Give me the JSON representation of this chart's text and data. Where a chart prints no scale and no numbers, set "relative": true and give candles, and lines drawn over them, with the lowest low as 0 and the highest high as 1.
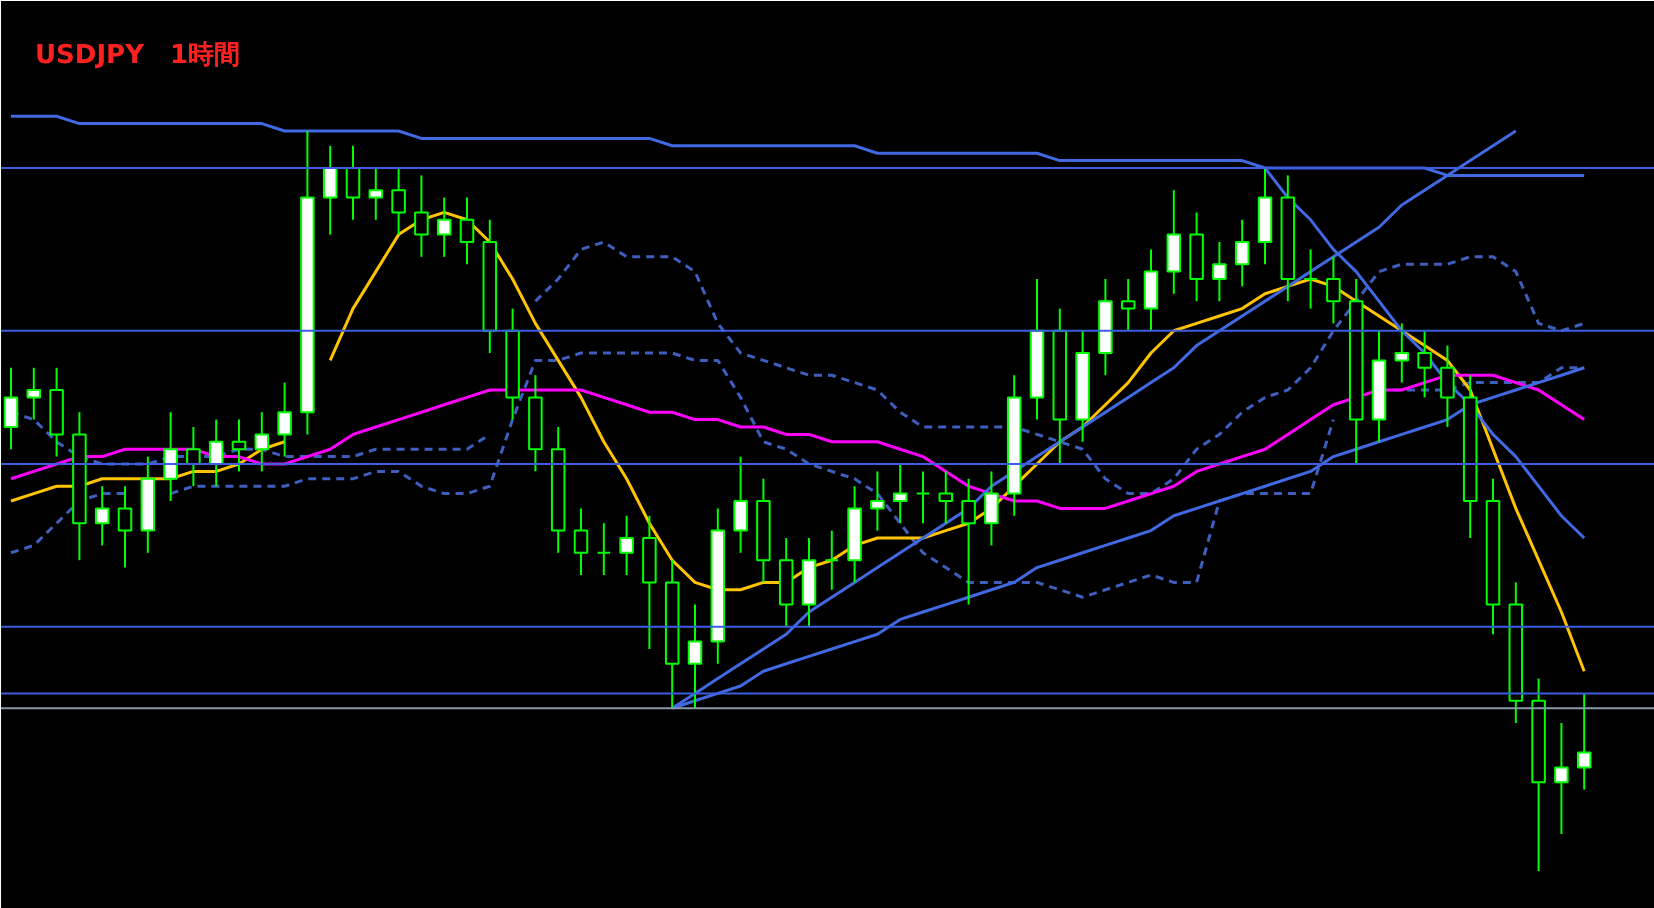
{
  "chart_data": {
    "type": "candlestick",
    "title": "USDJPY　1時間",
    "relative": true,
    "tick_labels": false,
    "categories": [
      null,
      null,
      null,
      null,
      null,
      null,
      null,
      null,
      null,
      null,
      null,
      null,
      null,
      null,
      null,
      null,
      null,
      null,
      null,
      null,
      null,
      null,
      null,
      null,
      null,
      null,
      null,
      null,
      null,
      null,
      null,
      null,
      null,
      null,
      null,
      null,
      null,
      null,
      null,
      null,
      null,
      null,
      null,
      null,
      null,
      null,
      null,
      null,
      null,
      null,
      null,
      null,
      null,
      null,
      null,
      null,
      null,
      null,
      null,
      null,
      null,
      null,
      null,
      null,
      null,
      null,
      null,
      null,
      null,
      null
    ],
    "ohlc": [
      [
        0.6,
        0.68,
        0.57,
        0.64
      ],
      [
        0.64,
        0.68,
        0.61,
        0.65
      ],
      [
        0.65,
        0.68,
        0.56,
        0.59
      ],
      [
        0.59,
        0.62,
        0.42,
        0.47
      ],
      [
        0.47,
        0.52,
        0.44,
        0.49
      ],
      [
        0.49,
        0.52,
        0.41,
        0.46
      ],
      [
        0.46,
        0.56,
        0.43,
        0.53
      ],
      [
        0.53,
        0.62,
        0.5,
        0.57
      ],
      [
        0.57,
        0.6,
        0.52,
        0.55
      ],
      [
        0.55,
        0.61,
        0.52,
        0.58
      ],
      [
        0.58,
        0.61,
        0.54,
        0.57
      ],
      [
        0.57,
        0.62,
        0.54,
        0.59
      ],
      [
        0.59,
        0.66,
        0.56,
        0.62
      ],
      [
        0.62,
        1.0,
        0.59,
        0.91
      ],
      [
        0.91,
        0.98,
        0.86,
        0.95
      ],
      [
        0.95,
        0.98,
        0.88,
        0.91
      ],
      [
        0.91,
        0.95,
        0.88,
        0.92
      ],
      [
        0.92,
        0.95,
        0.86,
        0.89
      ],
      [
        0.89,
        0.94,
        0.83,
        0.86
      ],
      [
        0.86,
        0.91,
        0.83,
        0.88
      ],
      [
        0.88,
        0.91,
        0.82,
        0.85
      ],
      [
        0.85,
        0.88,
        0.7,
        0.73
      ],
      [
        0.73,
        0.76,
        0.61,
        0.64
      ],
      [
        0.64,
        0.67,
        0.54,
        0.57
      ],
      [
        0.57,
        0.6,
        0.43,
        0.46
      ],
      [
        0.46,
        0.49,
        0.4,
        0.43
      ],
      [
        0.43,
        0.47,
        0.4,
        0.43
      ],
      [
        0.43,
        0.48,
        0.4,
        0.45
      ],
      [
        0.45,
        0.48,
        0.3,
        0.39
      ],
      [
        0.39,
        0.42,
        0.22,
        0.28
      ],
      [
        0.28,
        0.36,
        0.22,
        0.31
      ],
      [
        0.31,
        0.49,
        0.28,
        0.46
      ],
      [
        0.46,
        0.56,
        0.43,
        0.5
      ],
      [
        0.5,
        0.53,
        0.39,
        0.42
      ],
      [
        0.42,
        0.45,
        0.33,
        0.36
      ],
      [
        0.36,
        0.45,
        0.33,
        0.42
      ],
      [
        0.42,
        0.46,
        0.38,
        0.42
      ],
      [
        0.42,
        0.52,
        0.39,
        0.49
      ],
      [
        0.49,
        0.54,
        0.46,
        0.5
      ],
      [
        0.5,
        0.55,
        0.47,
        0.51
      ],
      [
        0.51,
        0.54,
        0.47,
        0.51
      ],
      [
        0.51,
        0.54,
        0.47,
        0.5
      ],
      [
        0.5,
        0.53,
        0.36,
        0.47
      ],
      [
        0.47,
        0.54,
        0.44,
        0.51
      ],
      [
        0.51,
        0.67,
        0.48,
        0.64
      ],
      [
        0.64,
        0.8,
        0.61,
        0.73
      ],
      [
        0.73,
        0.76,
        0.55,
        0.61
      ],
      [
        0.61,
        0.73,
        0.58,
        0.7
      ],
      [
        0.7,
        0.8,
        0.67,
        0.77
      ],
      [
        0.77,
        0.8,
        0.73,
        0.76
      ],
      [
        0.76,
        0.84,
        0.73,
        0.81
      ],
      [
        0.81,
        0.92,
        0.78,
        0.86
      ],
      [
        0.86,
        0.89,
        0.77,
        0.8
      ],
      [
        0.8,
        0.85,
        0.77,
        0.82
      ],
      [
        0.82,
        0.88,
        0.79,
        0.85
      ],
      [
        0.85,
        0.95,
        0.82,
        0.91
      ],
      [
        0.91,
        0.94,
        0.77,
        0.8
      ],
      [
        0.8,
        0.84,
        0.76,
        0.8
      ],
      [
        0.8,
        0.83,
        0.74,
        0.77
      ],
      [
        0.77,
        0.8,
        0.55,
        0.61
      ],
      [
        0.61,
        0.73,
        0.58,
        0.69
      ],
      [
        0.69,
        0.74,
        0.66,
        0.7
      ],
      [
        0.7,
        0.73,
        0.64,
        0.68
      ],
      [
        0.68,
        0.71,
        0.6,
        0.64
      ],
      [
        0.64,
        0.67,
        0.45,
        0.5
      ],
      [
        0.5,
        0.53,
        0.32,
        0.36
      ],
      [
        0.36,
        0.39,
        0.2,
        0.23
      ],
      [
        0.23,
        0.26,
        0.0,
        0.12
      ],
      [
        0.12,
        0.2,
        0.05,
        0.14
      ],
      [
        0.14,
        0.24,
        0.11,
        0.16
      ]
    ],
    "series": [
      {
        "type": "line",
        "line_style": "dashed",
        "color": "#3f5fbf",
        "values": [
          0.62,
          0.61,
          0.58,
          0.56,
          0.55,
          0.55,
          0.55,
          0.56,
          0.56,
          0.56,
          0.57,
          0.57,
          0.56,
          0.56,
          0.56,
          0.56,
          0.57,
          0.57,
          0.57,
          0.57,
          0.57,
          0.59,
          null,
          0.77,
          0.8,
          0.84,
          0.85,
          0.83,
          0.83,
          0.83,
          0.81,
          0.74,
          0.7,
          0.69,
          0.68,
          0.67,
          0.67,
          0.66,
          0.65,
          0.62,
          0.6,
          0.6,
          0.6,
          0.6,
          0.6,
          0.59,
          0.58,
          0.57,
          0.53,
          0.51,
          0.51,
          0.53,
          0.57,
          0.59,
          0.62,
          0.64,
          0.65,
          0.68,
          0.73,
          0.77,
          0.81,
          0.82,
          0.82,
          0.82,
          0.83,
          0.83,
          0.81,
          0.74,
          0.73,
          0.74
        ]
      },
      {
        "type": "line",
        "line_style": "dashed",
        "color": "#3f5fbf",
        "values": [
          0.43,
          0.44,
          0.47,
          0.5,
          0.51,
          0.51,
          null,
          0.51,
          0.52,
          0.52,
          0.52,
          0.52,
          0.52,
          0.53,
          0.53,
          0.53,
          0.54,
          0.54,
          0.52,
          0.51,
          0.51,
          0.52,
          0.61,
          0.69,
          0.69,
          0.7,
          0.7,
          0.7,
          0.7,
          0.7,
          0.69,
          0.69,
          0.64,
          0.58,
          0.57,
          0.55,
          0.54,
          0.53,
          0.51,
          0.47,
          0.43,
          0.41,
          0.39,
          0.39,
          0.39,
          0.39,
          0.38,
          0.37,
          0.38,
          0.39,
          0.4,
          0.39,
          0.39,
          0.5,
          0.51,
          0.51,
          0.51,
          0.51,
          0.61,
          null,
          0.65,
          0.65,
          0.65,
          0.65,
          0.66,
          0.66,
          0.66,
          0.66,
          0.68,
          0.68
        ]
      },
      {
        "type": "line",
        "color": "#ffc400",
        "values": [
          0.5,
          0.51,
          0.52,
          0.52,
          0.53,
          0.53,
          0.53,
          0.53,
          0.54,
          0.54,
          0.55,
          0.57,
          0.58,
          null,
          0.69,
          0.76,
          0.81,
          0.86,
          0.88,
          0.89,
          0.88,
          0.85,
          0.8,
          0.74,
          0.69,
          0.64,
          0.58,
          0.53,
          0.47,
          0.42,
          0.39,
          0.38,
          0.38,
          0.39,
          0.39,
          0.41,
          0.42,
          0.44,
          0.45,
          0.45,
          0.45,
          0.46,
          0.47,
          0.49,
          0.52,
          0.55,
          0.58,
          0.6,
          0.63,
          0.66,
          0.7,
          0.73,
          0.74,
          0.75,
          0.76,
          0.78,
          0.79,
          0.8,
          0.79,
          0.77,
          0.75,
          0.73,
          0.71,
          0.69,
          0.65,
          0.57,
          0.49,
          0.42,
          0.35,
          0.27
        ]
      },
      {
        "type": "line",
        "color": "#ff00ff",
        "values": [
          0.53,
          0.54,
          0.55,
          0.56,
          0.56,
          0.57,
          0.57,
          0.57,
          0.57,
          0.56,
          0.56,
          0.55,
          0.55,
          0.56,
          0.57,
          0.59,
          0.6,
          0.61,
          0.62,
          0.63,
          0.64,
          0.65,
          0.65,
          0.65,
          0.65,
          0.65,
          0.64,
          0.63,
          0.62,
          0.62,
          0.61,
          0.61,
          0.6,
          0.6,
          0.59,
          0.59,
          0.58,
          0.58,
          0.58,
          0.57,
          0.56,
          0.54,
          0.52,
          0.51,
          0.5,
          0.5,
          0.49,
          0.49,
          0.49,
          0.5,
          0.51,
          0.52,
          0.54,
          0.55,
          0.56,
          0.57,
          0.59,
          0.61,
          0.63,
          0.64,
          0.65,
          0.65,
          0.66,
          0.67,
          0.67,
          0.67,
          0.66,
          0.65,
          0.63,
          0.61
        ]
      },
      {
        "type": "line",
        "color": "#4169e1",
        "values": [
          1.02,
          1.02,
          1.02,
          1.01,
          1.01,
          1.01,
          1.01,
          1.01,
          1.01,
          1.01,
          1.01,
          1.01,
          1.0,
          1.0,
          1.0,
          1.0,
          1.0,
          1.0,
          0.99,
          0.99,
          0.99,
          0.99,
          0.99,
          0.99,
          0.99,
          0.99,
          0.99,
          0.99,
          0.99,
          0.98,
          0.98,
          0.98,
          0.98,
          0.98,
          0.98,
          0.98,
          0.98,
          0.98,
          0.97,
          0.97,
          0.97,
          0.97,
          0.97,
          0.97,
          0.97,
          0.97,
          0.96,
          0.96,
          0.96,
          0.96,
          0.96,
          0.96,
          0.96,
          0.96,
          0.96,
          0.95,
          0.95,
          0.95,
          0.95,
          0.95,
          0.95,
          0.95,
          0.95,
          0.94,
          0.94,
          0.94,
          0.94,
          0.94,
          0.94,
          0.94
        ]
      },
      {
        "type": "line",
        "color": "#4169e1",
        "values": [
          null,
          null,
          null,
          null,
          null,
          null,
          null,
          null,
          null,
          null,
          null,
          null,
          null,
          null,
          null,
          null,
          null,
          null,
          null,
          null,
          null,
          null,
          null,
          null,
          null,
          null,
          null,
          null,
          null,
          0.22,
          0.24,
          0.26,
          0.28,
          0.3,
          0.32,
          0.35,
          0.37,
          0.39,
          0.41,
          0.43,
          0.45,
          0.47,
          0.49,
          0.52,
          0.54,
          0.56,
          0.58,
          0.6,
          0.62,
          0.64,
          0.66,
          0.68,
          0.71,
          0.73,
          0.75,
          0.77,
          0.79,
          0.81,
          0.83,
          0.85,
          0.87,
          0.9,
          0.92,
          0.94,
          0.96,
          0.98,
          1.0,
          null,
          null,
          null
        ]
      },
      {
        "type": "line",
        "color": "#4169e1",
        "values": [
          null,
          null,
          null,
          null,
          null,
          null,
          null,
          null,
          null,
          null,
          null,
          null,
          null,
          null,
          null,
          null,
          null,
          null,
          null,
          null,
          null,
          null,
          null,
          null,
          null,
          null,
          null,
          null,
          null,
          0.22,
          0.23,
          0.24,
          0.25,
          0.27,
          0.28,
          0.29,
          0.3,
          0.31,
          0.32,
          0.34,
          0.35,
          0.36,
          0.37,
          0.38,
          0.39,
          0.41,
          0.42,
          0.43,
          0.44,
          0.45,
          0.46,
          0.48,
          0.49,
          0.5,
          0.51,
          0.52,
          0.53,
          0.54,
          0.56,
          0.57,
          0.58,
          0.59,
          0.6,
          0.61,
          0.63,
          0.64,
          0.65,
          0.66,
          0.67,
          0.68
        ]
      },
      {
        "type": "line",
        "color": "#4169e1",
        "values": [
          null,
          null,
          null,
          null,
          null,
          null,
          null,
          null,
          null,
          null,
          null,
          null,
          null,
          null,
          null,
          null,
          null,
          null,
          null,
          null,
          null,
          null,
          null,
          null,
          null,
          null,
          null,
          null,
          null,
          null,
          null,
          null,
          null,
          null,
          null,
          null,
          null,
          null,
          null,
          null,
          null,
          null,
          null,
          null,
          null,
          null,
          null,
          null,
          null,
          null,
          null,
          null,
          null,
          null,
          null,
          0.95,
          0.91,
          0.88,
          0.84,
          0.81,
          0.77,
          0.73,
          0.7,
          0.66,
          0.63,
          0.59,
          0.56,
          0.52,
          0.48,
          0.45
        ]
      }
    ],
    "ref_lines": [
      {
        "axis": "y",
        "value": 0.95,
        "color": "#3b5fe0"
      },
      {
        "axis": "y",
        "value": 0.73,
        "color": "#3b5fe0"
      },
      {
        "axis": "y",
        "value": 0.55,
        "color": "#3b5fe0"
      },
      {
        "axis": "y",
        "value": 0.33,
        "color": "#3b5fe0"
      },
      {
        "axis": "y",
        "value": 0.24,
        "color": "#3b5fe0"
      },
      {
        "axis": "y",
        "value": 0.22,
        "color": "#8899aa"
      }
    ]
  }
}
